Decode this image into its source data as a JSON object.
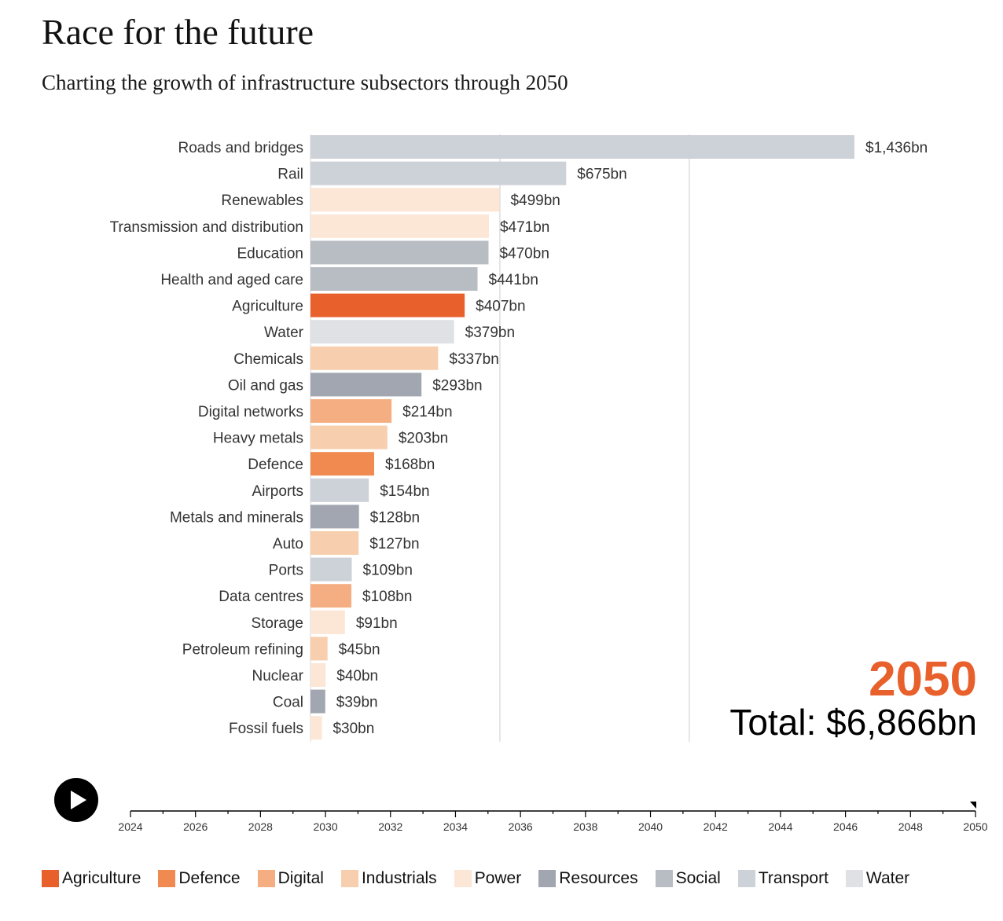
{
  "title": "Race for the future",
  "subtitle": "Charting the growth of infrastructure subsectors through 2050",
  "current_year": "2050",
  "total_label": "Total: $6,866bn",
  "play_icon": "play-icon",
  "legend": [
    {
      "name": "Agriculture",
      "color": "#e8602c"
    },
    {
      "name": "Defence",
      "color": "#f08a50"
    },
    {
      "name": "Digital",
      "color": "#f4ae82"
    },
    {
      "name": "Industrials",
      "color": "#f8cfae"
    },
    {
      "name": "Power",
      "color": "#fce6d6"
    },
    {
      "name": "Resources",
      "color": "#a2a6b0"
    },
    {
      "name": "Social",
      "color": "#b8bcc3"
    },
    {
      "name": "Transport",
      "color": "#cdd1d8"
    },
    {
      "name": "Water",
      "color": "#dfe1e4"
    }
  ],
  "timeline": {
    "ticks": [
      "2024",
      "2026",
      "2028",
      "2030",
      "2032",
      "2034",
      "2036",
      "2038",
      "2040",
      "2042",
      "2044",
      "2046",
      "2048",
      "2050"
    ],
    "start": 2024,
    "end": 2050,
    "current": 2050
  },
  "chart_data": {
    "type": "bar",
    "orientation": "horizontal",
    "title": "Race for the future",
    "subtitle": "Charting the growth of infrastructure subsectors through 2050",
    "units": "bn",
    "gridlines": [
      500,
      1000
    ],
    "xlim": [
      0,
      1436
    ],
    "bars": [
      {
        "category": "Roads and bridges",
        "value": 1436,
        "label": "$1,436bn",
        "group": "Transport"
      },
      {
        "category": "Rail",
        "value": 675,
        "label": "$675bn",
        "group": "Transport"
      },
      {
        "category": "Renewables",
        "value": 499,
        "label": "$499bn",
        "group": "Power"
      },
      {
        "category": "Transmission and distribution",
        "value": 471,
        "label": "$471bn",
        "group": "Power"
      },
      {
        "category": "Education",
        "value": 470,
        "label": "$470bn",
        "group": "Social"
      },
      {
        "category": "Health and aged care",
        "value": 441,
        "label": "$441bn",
        "group": "Social"
      },
      {
        "category": "Agriculture",
        "value": 407,
        "label": "$407bn",
        "group": "Agriculture"
      },
      {
        "category": "Water",
        "value": 379,
        "label": "$379bn",
        "group": "Water"
      },
      {
        "category": "Chemicals",
        "value": 337,
        "label": "$337bn",
        "group": "Industrials"
      },
      {
        "category": "Oil and gas",
        "value": 293,
        "label": "$293bn",
        "group": "Resources"
      },
      {
        "category": "Digital networks",
        "value": 214,
        "label": "$214bn",
        "group": "Digital"
      },
      {
        "category": "Heavy metals",
        "value": 203,
        "label": "$203bn",
        "group": "Industrials"
      },
      {
        "category": "Defence",
        "value": 168,
        "label": "$168bn",
        "group": "Defence"
      },
      {
        "category": "Airports",
        "value": 154,
        "label": "$154bn",
        "group": "Transport"
      },
      {
        "category": "Metals and minerals",
        "value": 128,
        "label": "$128bn",
        "group": "Resources"
      },
      {
        "category": "Auto",
        "value": 127,
        "label": "$127bn",
        "group": "Industrials"
      },
      {
        "category": "Ports",
        "value": 109,
        "label": "$109bn",
        "group": "Transport"
      },
      {
        "category": "Data centres",
        "value": 108,
        "label": "$108bn",
        "group": "Digital"
      },
      {
        "category": "Storage",
        "value": 91,
        "label": "$91bn",
        "group": "Power"
      },
      {
        "category": "Petroleum refining",
        "value": 45,
        "label": "$45bn",
        "group": "Industrials"
      },
      {
        "category": "Nuclear",
        "value": 40,
        "label": "$40bn",
        "group": "Power"
      },
      {
        "category": "Coal",
        "value": 39,
        "label": "$39bn",
        "group": "Resources"
      },
      {
        "category": "Fossil fuels",
        "value": 30,
        "label": "$30bn",
        "group": "Power"
      }
    ]
  }
}
